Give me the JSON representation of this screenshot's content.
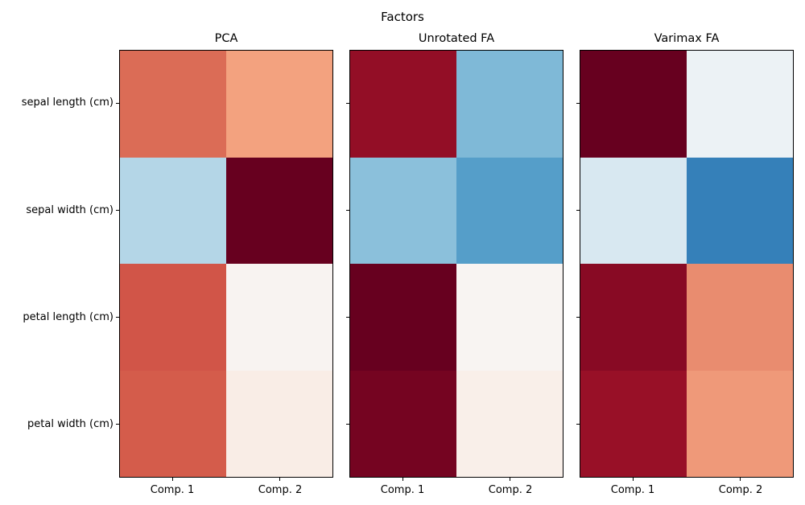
{
  "figure": {
    "suptitle": "Factors",
    "background_color": "#ffffff",
    "axis_edge_color": "#000000",
    "text_color": "#000000",
    "row_labels": [
      "sepal length (cm)",
      "sepal width (cm)",
      "petal length (cm)",
      "petal width (cm)"
    ],
    "col_labels": [
      "Comp. 1",
      "Comp. 2"
    ],
    "colormap": "RdBu_r",
    "panels": [
      {
        "title": "PCA",
        "cell_colors": [
          [
            "#db6c56",
            "#f3a27f"
          ],
          [
            "#b4d6e7",
            "#67001f"
          ],
          [
            "#d15548",
            "#f8f3f1"
          ],
          [
            "#d45c4b",
            "#f9ede6"
          ]
        ]
      },
      {
        "title": "Unrotated FA",
        "cell_colors": [
          [
            "#930e26",
            "#7fb9d7"
          ],
          [
            "#8bc0db",
            "#559ec9"
          ],
          [
            "#67001f",
            "#f8f4f2"
          ],
          [
            "#750421",
            "#f9efe9"
          ]
        ]
      },
      {
        "title": "Varimax FA",
        "cell_colors": [
          [
            "#67001f",
            "#ecf2f5"
          ],
          [
            "#d8e8f1",
            "#3580b9"
          ],
          [
            "#880a24",
            "#e98c6f"
          ],
          [
            "#981027",
            "#ef9979"
          ]
        ]
      }
    ]
  },
  "chart_data": [
    {
      "type": "heatmap",
      "title": "PCA",
      "rows": [
        "sepal length (cm)",
        "sepal width (cm)",
        "petal length (cm)",
        "petal width (cm)"
      ],
      "columns": [
        "Comp. 1",
        "Comp. 2"
      ],
      "values": [
        [
          0.52,
          0.38
        ],
        [
          -0.27,
          0.92
        ],
        [
          0.58,
          0.02
        ],
        [
          0.56,
          0.07
        ]
      ],
      "colormap": "RdBu_r",
      "vmin": -0.92,
      "vmax": 0.92,
      "grid": false,
      "legend": "none"
    },
    {
      "type": "heatmap",
      "title": "Unrotated FA",
      "rows": [
        "sepal length (cm)",
        "sepal width (cm)",
        "petal length (cm)",
        "petal width (cm)"
      ],
      "columns": [
        "Comp. 1",
        "Comp. 2"
      ],
      "values": [
        [
          0.88,
          -0.45
        ],
        [
          -0.42,
          -0.55
        ],
        [
          1.0,
          0.02
        ],
        [
          0.96,
          0.06
        ]
      ],
      "colormap": "RdBu_r",
      "vmin": -1.0,
      "vmax": 1.0,
      "grid": false,
      "legend": "none"
    },
    {
      "type": "heatmap",
      "title": "Varimax FA",
      "rows": [
        "sepal length (cm)",
        "sepal width (cm)",
        "petal length (cm)",
        "petal width (cm)"
      ],
      "columns": [
        "Comp. 1",
        "Comp. 2"
      ],
      "values": [
        [
          0.99,
          -0.06
        ],
        [
          -0.16,
          -0.67
        ],
        [
          0.9,
          0.47
        ],
        [
          0.86,
          0.43
        ]
      ],
      "colormap": "RdBu_r",
      "vmin": -0.99,
      "vmax": 0.99,
      "grid": false,
      "legend": "none"
    }
  ]
}
